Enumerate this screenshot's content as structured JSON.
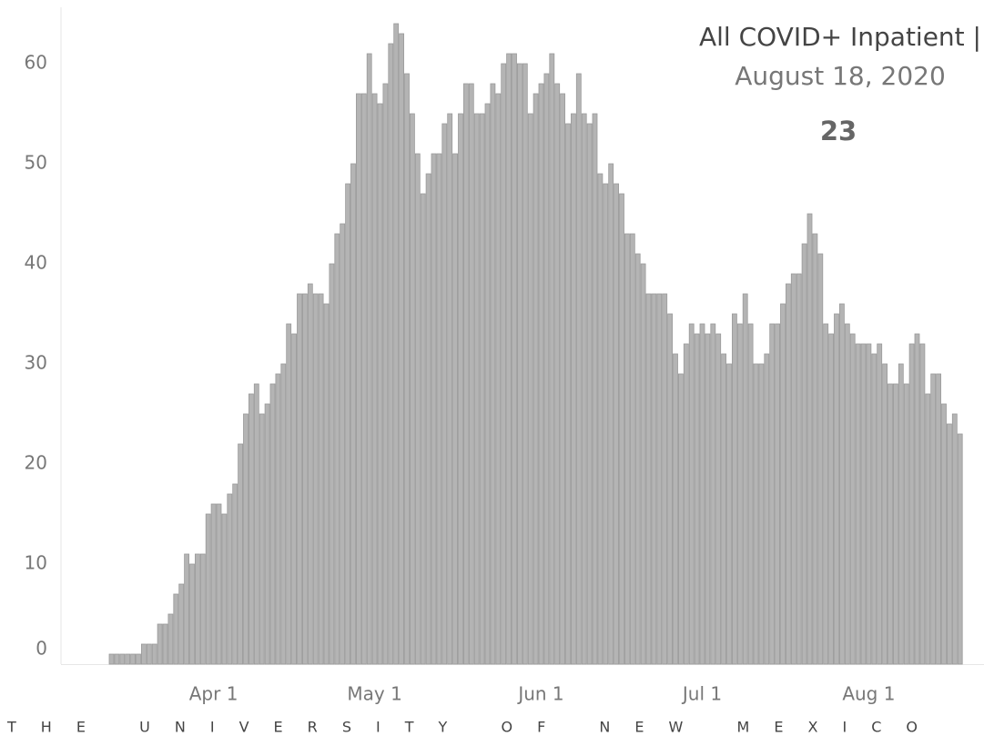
{
  "chart_data": {
    "type": "bar",
    "title": "All COVID+ Inpatient |",
    "subtitle": "August 18, 2020",
    "annotation": "23",
    "footer": "THE UNIVERSITY OF NEW MEXICO",
    "color": "#b4b4b4",
    "categories": [
      null,
      null,
      null,
      null,
      null,
      null,
      null,
      null,
      null,
      null,
      null,
      null,
      null,
      null,
      null,
      null,
      null,
      null,
      null,
      "Apr 1",
      null,
      null,
      null,
      null,
      null,
      null,
      null,
      null,
      null,
      null,
      null,
      null,
      null,
      null,
      null,
      null,
      null,
      null,
      null,
      null,
      null,
      null,
      null,
      null,
      null,
      null,
      null,
      null,
      null,
      "May 1",
      null,
      null,
      null,
      null,
      null,
      null,
      null,
      null,
      null,
      null,
      null,
      null,
      null,
      null,
      null,
      null,
      null,
      null,
      null,
      null,
      null,
      null,
      null,
      null,
      null,
      null,
      null,
      null,
      null,
      null,
      "Jun 1",
      null,
      null,
      null,
      null,
      null,
      null,
      null,
      null,
      null,
      null,
      null,
      null,
      null,
      null,
      null,
      null,
      null,
      null,
      null,
      null,
      null,
      null,
      null,
      null,
      null,
      null,
      null,
      null,
      null,
      "Jul 1",
      null,
      null,
      null,
      null,
      null,
      null,
      null,
      null,
      null,
      null,
      null,
      null,
      null,
      null,
      null,
      null,
      null,
      null,
      null,
      null,
      null,
      null,
      null,
      null,
      null,
      null,
      null,
      null,
      null,
      null,
      "Aug 1",
      null,
      null,
      null,
      null,
      null,
      null,
      null,
      null,
      null,
      null,
      null,
      null,
      null,
      null,
      null,
      null,
      null
    ],
    "values": [
      1,
      1,
      1,
      1,
      1,
      1,
      2,
      2,
      2,
      4,
      4,
      5,
      7,
      8,
      11,
      10,
      11,
      11,
      15,
      16,
      16,
      15,
      17,
      18,
      22,
      25,
      27,
      28,
      25,
      26,
      28,
      29,
      30,
      34,
      33,
      37,
      37,
      38,
      37,
      37,
      36,
      40,
      43,
      44,
      48,
      50,
      57,
      57,
      61,
      57,
      56,
      58,
      62,
      64,
      63,
      59,
      55,
      51,
      47,
      49,
      51,
      51,
      54,
      55,
      51,
      55,
      58,
      58,
      55,
      55,
      56,
      58,
      57,
      60,
      61,
      61,
      60,
      60,
      55,
      57,
      58,
      59,
      61,
      58,
      57,
      54,
      55,
      59,
      55,
      54,
      55,
      49,
      48,
      50,
      48,
      47,
      43,
      43,
      41,
      40,
      37,
      37,
      37,
      37,
      35,
      31,
      29,
      32,
      34,
      33,
      34,
      33,
      34,
      33,
      31,
      30,
      35,
      34,
      37,
      34,
      30,
      30,
      31,
      34,
      34,
      36,
      38,
      39,
      39,
      42,
      45,
      43,
      41,
      34,
      33,
      35,
      36,
      34,
      33,
      32,
      32,
      32,
      31,
      32,
      30,
      28,
      28,
      30,
      28,
      32,
      33,
      32,
      27,
      29,
      29,
      26,
      24,
      25,
      23
    ],
    "ylim": [
      0,
      66
    ],
    "yticks": [
      0,
      10,
      20,
      30,
      40,
      50,
      60
    ]
  }
}
